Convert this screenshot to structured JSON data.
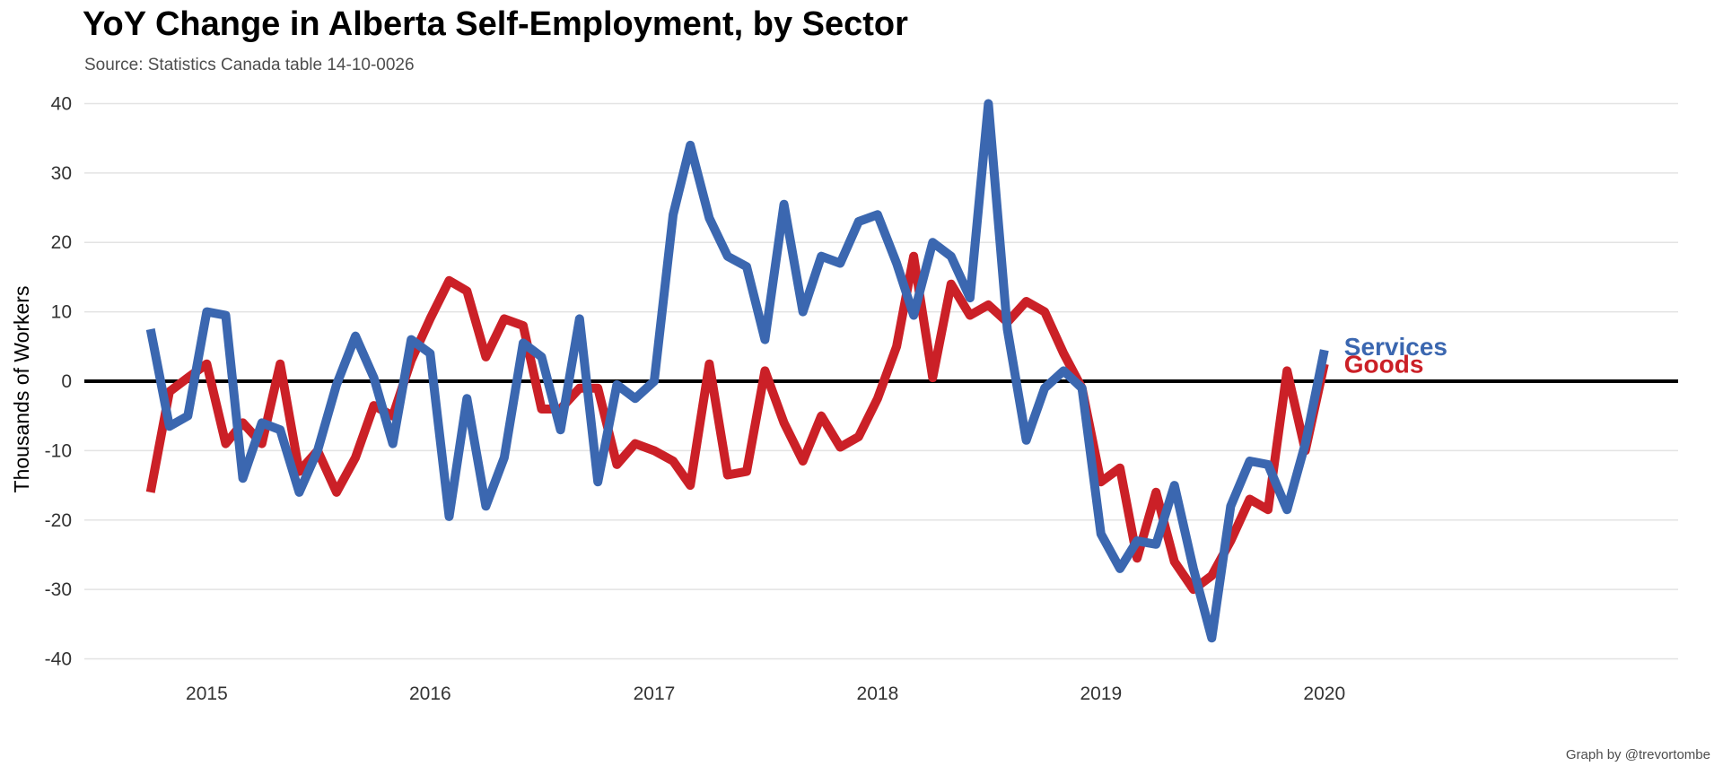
{
  "title": "YoY Change in Alberta Self-Employment, by Sector",
  "subtitle": "Source: Statistics Canada table 14-10-0026",
  "caption": "Graph by @trevortombe",
  "chart_data": {
    "type": "line",
    "title": "YoY Change in Alberta Self-Employment, by Sector",
    "subtitle": "Source: Statistics Canada table 14-10-0026",
    "xlabel": "",
    "ylabel": "Thousands of Workers",
    "xlim": [
      "2014-06-15",
      "2021-08-01"
    ],
    "ylim": [
      -42,
      42
    ],
    "x_ticks": [
      {
        "date": "2015-01-01",
        "label": "2015"
      },
      {
        "date": "2016-01-01",
        "label": "2016"
      },
      {
        "date": "2017-01-01",
        "label": "2017"
      },
      {
        "date": "2018-01-01",
        "label": "2018"
      },
      {
        "date": "2019-01-01",
        "label": "2019"
      },
      {
        "date": "2020-01-01",
        "label": "2020"
      }
    ],
    "y_ticks": [
      {
        "value": 40,
        "label": "40"
      },
      {
        "value": 30,
        "label": "30"
      },
      {
        "value": 20,
        "label": "20"
      },
      {
        "value": 10,
        "label": "10"
      },
      {
        "value": 0,
        "label": "0"
      },
      {
        "value": -10,
        "label": "-10"
      },
      {
        "value": -20,
        "label": "-20"
      },
      {
        "value": -30,
        "label": "-30"
      },
      {
        "value": -40,
        "label": "-40"
      }
    ],
    "grid": "horizontal",
    "zero_line": true,
    "legend": "direct labels at line ends",
    "x": [
      "2014-10",
      "2014-11",
      "2014-12",
      "2015-01",
      "2015-02",
      "2015-03",
      "2015-04",
      "2015-05",
      "2015-06",
      "2015-07",
      "2015-08",
      "2015-09",
      "2015-10",
      "2015-11",
      "2015-12",
      "2016-01",
      "2016-02",
      "2016-03",
      "2016-04",
      "2016-05",
      "2016-06",
      "2016-07",
      "2016-08",
      "2016-09",
      "2016-10",
      "2016-11",
      "2016-12",
      "2017-01",
      "2017-02",
      "2017-03",
      "2017-04",
      "2017-05",
      "2017-06",
      "2017-07",
      "2017-08",
      "2017-09",
      "2017-10",
      "2017-11",
      "2017-12",
      "2018-01",
      "2018-02",
      "2018-03",
      "2018-04",
      "2018-05",
      "2018-06",
      "2018-07",
      "2018-08",
      "2018-09",
      "2018-10",
      "2018-11",
      "2018-12",
      "2019-01",
      "2019-02",
      "2019-03",
      "2019-04",
      "2019-05",
      "2019-06",
      "2019-07",
      "2019-08",
      "2019-09",
      "2019-10",
      "2019-11",
      "2019-12",
      "2020-01"
    ],
    "series": [
      {
        "name": "Goods",
        "color": "#cb2027",
        "values": [
          -16,
          -1.5,
          0.5,
          2.5,
          -9,
          -6,
          -9,
          2.5,
          -13,
          -10,
          -16,
          -11,
          -3.5,
          -5,
          3,
          9,
          14.5,
          13,
          3.5,
          9,
          8,
          -4,
          -4,
          -1,
          -1,
          -12,
          -9,
          -10,
          -11.5,
          -15,
          2.5,
          -13.5,
          -13,
          1.5,
          -6,
          -11.5,
          -5,
          -9.5,
          -8,
          -2.5,
          5,
          18,
          0.5,
          14,
          9.5,
          11,
          8.5,
          11.5,
          10,
          4,
          -1,
          -14.5,
          -12.5,
          -25.5,
          -16,
          -26,
          -30,
          -28,
          -23,
          -17,
          -18.5,
          1.5,
          -10,
          2.5
        ]
      },
      {
        "name": "Services",
        "color": "#3b67b0",
        "values": [
          7.5,
          -6.5,
          -5,
          10,
          9.5,
          -14,
          -6,
          -7,
          -16,
          -10,
          -0.5,
          6.5,
          0.5,
          -9,
          6,
          4,
          -19.5,
          -2.5,
          -18,
          -11,
          5.5,
          3.5,
          -7,
          9,
          -14.5,
          -0.5,
          -2.5,
          0,
          24,
          34,
          23.5,
          18,
          16.5,
          6,
          25.5,
          10,
          18,
          17,
          23,
          24,
          17,
          9.5,
          20,
          18,
          12,
          40,
          7.5,
          -8.5,
          -1,
          1.5,
          -1,
          -22,
          -27,
          -23,
          -23.5,
          -15,
          -27,
          -37,
          -18,
          -11.5,
          -12,
          -18.5,
          -9,
          4.5
        ]
      }
    ]
  }
}
